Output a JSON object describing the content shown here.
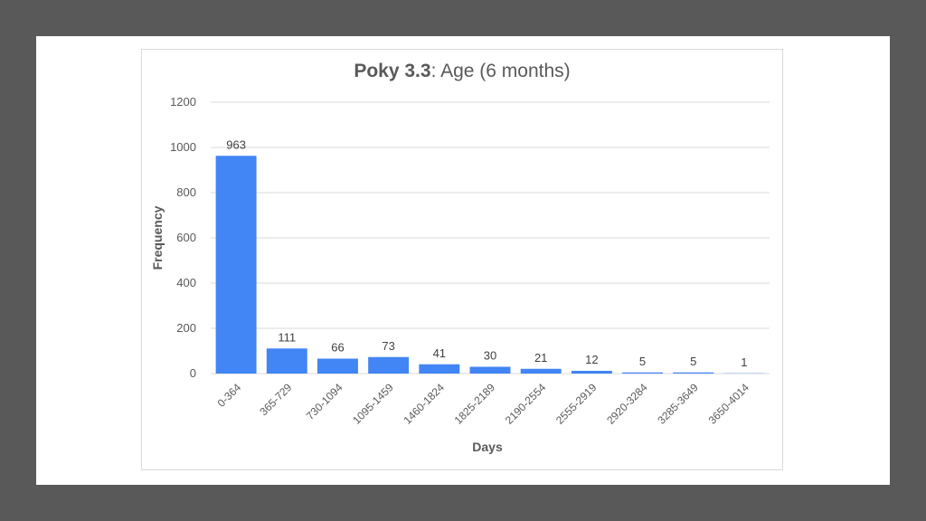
{
  "colors": {
    "background": "#595959",
    "slide": "#ffffff",
    "bar": "#4285f4",
    "grid": "#d9d9d9",
    "text": "#595959"
  },
  "chart_data": {
    "type": "bar",
    "title_bold": "Poky 3.3",
    "title_rest": ": Age (6 months)",
    "xlabel": "Days",
    "ylabel": "Frequency",
    "ylim": [
      0,
      1200
    ],
    "yticks": [
      "0",
      "200",
      "400",
      "600",
      "800",
      "1000",
      "1200"
    ],
    "grid": true,
    "legend": "none",
    "categories": [
      "0-364",
      "365-729",
      "730-1094",
      "1095-1459",
      "1460-1824",
      "1825-2189",
      "2190-2554",
      "2555-2919",
      "2920-3284",
      "3285-3649",
      "3650-4014"
    ],
    "values": [
      963,
      111,
      66,
      73,
      41,
      30,
      21,
      12,
      5,
      5,
      1
    ],
    "data_labels": [
      "963",
      "111",
      "66",
      "73",
      "41",
      "30",
      "21",
      "12",
      "5",
      "5",
      "1"
    ]
  }
}
